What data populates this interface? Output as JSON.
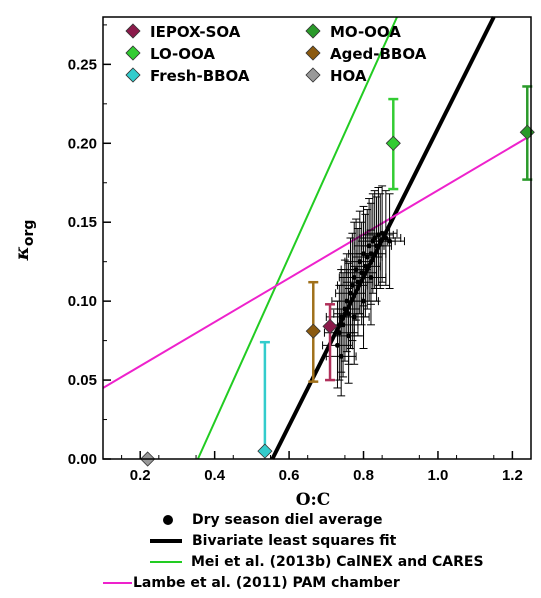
{
  "chart_data": {
    "type": "scatter",
    "xlabel": "O:C",
    "ylabel": "κ",
    "ylabel_subscript": "org",
    "xlim": [
      0.1,
      1.25
    ],
    "ylim": [
      0.0,
      0.28
    ],
    "x_ticks": [
      0.2,
      0.4,
      0.6,
      0.8,
      1.0,
      1.2
    ],
    "x_tick_labels": [
      "0.2",
      "0.4",
      "0.6",
      "0.8",
      "1.0",
      "1.2"
    ],
    "y_ticks": [
      0.0,
      0.05,
      0.1,
      0.15,
      0.2,
      0.25
    ],
    "y_tick_labels": [
      "0.00",
      "0.05",
      "0.10",
      "0.15",
      "0.20",
      "0.25"
    ],
    "factor_legend": [
      {
        "name": "IEPOX-SOA",
        "color": "#8b1a4a",
        "err_color": "#b0305a"
      },
      {
        "name": "LO-OOA",
        "color": "#33cc33",
        "err_color": "#33cc33"
      },
      {
        "name": "Fresh-BBOA",
        "color": "#33cccc",
        "err_color": "#33cccc"
      },
      {
        "name": "MO-OOA",
        "color": "#2a9a2a",
        "err_color": "#2a9a2a"
      },
      {
        "name": "Aged-BBOA",
        "color": "#8b5a10",
        "err_color": "#a0701a"
      },
      {
        "name": "HOA",
        "color": "#999999",
        "err_color": "#999999"
      }
    ],
    "factor_points": [
      {
        "name": "IEPOX-SOA",
        "x": 0.71,
        "y": 0.084,
        "y_low": 0.05,
        "y_high": 0.098
      },
      {
        "name": "LO-OOA",
        "x": 0.88,
        "y": 0.2,
        "y_low": 0.171,
        "y_high": 0.228
      },
      {
        "name": "Fresh-BBOA",
        "x": 0.535,
        "y": 0.005,
        "y_low": 0.005,
        "y_high": 0.074
      },
      {
        "name": "MO-OOA",
        "x": 1.24,
        "y": 0.207,
        "y_low": 0.177,
        "y_high": 0.236
      },
      {
        "name": "Aged-BBOA",
        "x": 0.665,
        "y": 0.081,
        "y_low": 0.049,
        "y_high": 0.112
      },
      {
        "name": "HOA",
        "x": 0.22,
        "y": 0.0,
        "y_low": 0.0,
        "y_high": 0.0
      }
    ],
    "diel_average": {
      "name": "Dry season diel average",
      "x_err": 0.04,
      "points": [
        {
          "x": 0.73,
          "y": 0.072,
          "ylo": 0.045,
          "yhi": 0.1
        },
        {
          "x": 0.735,
          "y": 0.08,
          "ylo": 0.05,
          "yhi": 0.11
        },
        {
          "x": 0.74,
          "y": 0.09,
          "ylo": 0.055,
          "yhi": 0.12
        },
        {
          "x": 0.745,
          "y": 0.085,
          "ylo": 0.052,
          "yhi": 0.118
        },
        {
          "x": 0.75,
          "y": 0.095,
          "ylo": 0.062,
          "yhi": 0.126
        },
        {
          "x": 0.755,
          "y": 0.1,
          "ylo": 0.068,
          "yhi": 0.13
        },
        {
          "x": 0.76,
          "y": 0.092,
          "ylo": 0.06,
          "yhi": 0.124
        },
        {
          "x": 0.765,
          "y": 0.105,
          "ylo": 0.07,
          "yhi": 0.14
        },
        {
          "x": 0.77,
          "y": 0.11,
          "ylo": 0.075,
          "yhi": 0.143
        },
        {
          "x": 0.775,
          "y": 0.115,
          "ylo": 0.08,
          "yhi": 0.15
        },
        {
          "x": 0.78,
          "y": 0.12,
          "ylo": 0.088,
          "yhi": 0.152
        },
        {
          "x": 0.785,
          "y": 0.112,
          "ylo": 0.078,
          "yhi": 0.146
        },
        {
          "x": 0.79,
          "y": 0.125,
          "ylo": 0.092,
          "yhi": 0.157
        },
        {
          "x": 0.795,
          "y": 0.118,
          "ylo": 0.085,
          "yhi": 0.15
        },
        {
          "x": 0.8,
          "y": 0.13,
          "ylo": 0.097,
          "yhi": 0.16
        },
        {
          "x": 0.805,
          "y": 0.122,
          "ylo": 0.09,
          "yhi": 0.155
        },
        {
          "x": 0.81,
          "y": 0.128,
          "ylo": 0.095,
          "yhi": 0.158
        },
        {
          "x": 0.815,
          "y": 0.135,
          "ylo": 0.1,
          "yhi": 0.165
        },
        {
          "x": 0.82,
          "y": 0.13,
          "ylo": 0.098,
          "yhi": 0.162
        },
        {
          "x": 0.825,
          "y": 0.138,
          "ylo": 0.105,
          "yhi": 0.168
        },
        {
          "x": 0.83,
          "y": 0.14,
          "ylo": 0.108,
          "yhi": 0.17
        },
        {
          "x": 0.835,
          "y": 0.135,
          "ylo": 0.1,
          "yhi": 0.166
        },
        {
          "x": 0.84,
          "y": 0.142,
          "ylo": 0.11,
          "yhi": 0.172
        },
        {
          "x": 0.845,
          "y": 0.138,
          "ylo": 0.108,
          "yhi": 0.168
        },
        {
          "x": 0.85,
          "y": 0.143,
          "ylo": 0.112,
          "yhi": 0.173
        },
        {
          "x": 0.86,
          "y": 0.14,
          "ylo": 0.11,
          "yhi": 0.17
        },
        {
          "x": 0.87,
          "y": 0.138,
          "ylo": 0.108,
          "yhi": 0.168
        },
        {
          "x": 0.8,
          "y": 0.1,
          "ylo": 0.07,
          "yhi": 0.13
        },
        {
          "x": 0.775,
          "y": 0.09,
          "ylo": 0.06,
          "yhi": 0.12
        },
        {
          "x": 0.76,
          "y": 0.078,
          "ylo": 0.048,
          "yhi": 0.108
        },
        {
          "x": 0.82,
          "y": 0.115,
          "ylo": 0.085,
          "yhi": 0.145
        },
        {
          "x": 0.74,
          "y": 0.065,
          "ylo": 0.04,
          "yhi": 0.095
        }
      ]
    },
    "lines": [
      {
        "name": "Bivariate least squares fit",
        "color": "#000000",
        "width": 4,
        "x": [
          0.555,
          1.15
        ],
        "y": [
          0.0,
          0.28
        ]
      },
      {
        "name": "Mei et al. (2013b) CalNEX and CARES",
        "color": "#22cc22",
        "width": 2,
        "x": [
          0.355,
          0.89
        ],
        "y": [
          0.0,
          0.28
        ]
      },
      {
        "name": "Lambe et al. (2011) PAM chamber",
        "color": "#ee22cc",
        "width": 2,
        "x": [
          0.1,
          1.25
        ],
        "y": [
          0.045,
          0.205
        ]
      }
    ],
    "bottom_legend": [
      {
        "label": "Dry season diel average",
        "kind": "dot",
        "color": "#000000"
      },
      {
        "label": "Bivariate least squares fit",
        "kind": "line",
        "color": "#000000",
        "width": 4
      },
      {
        "label": "Mei et al. (2013b) CalNEX and CARES",
        "kind": "line",
        "color": "#22cc22",
        "width": 2
      },
      {
        "label": "Lambe et al. (2011) PAM chamber",
        "kind": "line",
        "color": "#ee22cc",
        "width": 2
      }
    ],
    "grid": "none",
    "legend_placement": "top-left inside plot (factors); below plot (lines)"
  }
}
